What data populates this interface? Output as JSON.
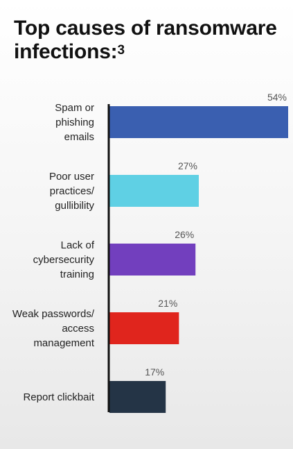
{
  "header": {
    "title": "Top causes of ransomware infections:",
    "footnote": "3"
  },
  "chart_data": {
    "type": "bar",
    "orientation": "horizontal",
    "title": "Top causes of ransomware infections:",
    "categories": [
      "Spam or phishing emails",
      "Poor user practices/ gullibility",
      "Lack of cybersecurity training",
      "Weak passwords/ access management",
      "Report clickbait"
    ],
    "category_lines": [
      [
        "Spam or",
        "phishing",
        "emails"
      ],
      [
        "Poor user",
        "practices/",
        "gullibility"
      ],
      [
        "Lack of",
        "cybersecurity",
        "training"
      ],
      [
        "Weak passwords/",
        "access",
        "management"
      ],
      [
        "Report clickbait"
      ]
    ],
    "values": [
      54,
      27,
      26,
      21,
      17
    ],
    "value_labels": [
      "54%",
      "27%",
      "26%",
      "21%",
      "17%"
    ],
    "colors": [
      "#3a5fb0",
      "#5fd0e4",
      "#723fbe",
      "#e0251d",
      "#243446"
    ],
    "unit": "%",
    "xlim": [
      0,
      54
    ],
    "grid": false,
    "legend": "none"
  }
}
